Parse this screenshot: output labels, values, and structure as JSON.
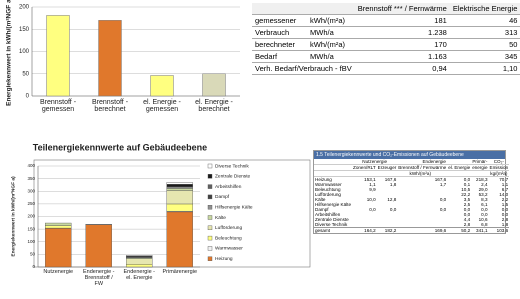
{
  "chart_data": [
    {
      "type": "bar",
      "ylabel": "Energiekennwert in kWh/(m²NGF a)",
      "categories": [
        "Brennstoff - gemessen",
        "Brennstoff - berechnet",
        "el. Energie - gemessen",
        "el. Energie - berechnet"
      ],
      "values": [
        181,
        170,
        46,
        50
      ],
      "colors": [
        "#ffff80",
        "#e0782c",
        "#ffff80",
        "#d9d9b8"
      ],
      "ylim": [
        0,
        200
      ],
      "yticks": [
        0,
        50,
        100,
        150,
        200
      ],
      "grid": true
    },
    {
      "type": "stacked_bar",
      "title": "Teilenergiekennwerte auf Gebäudeebene",
      "ylabel": "Energiekennwert in kWh/(m²NGF a)",
      "categories": [
        "Nutzenergie",
        "Endenergie - Brennstoff / FW",
        "Endenergie - el. Energie",
        "Primärenergie"
      ],
      "series": [
        {
          "name": "Heizung",
          "color": "#e0782c",
          "values": [
            153.1,
            167.6,
            0,
            218.3
          ]
        },
        {
          "name": "Warmwasser",
          "color": "#f2f2f2",
          "values": [
            1.1,
            1.7,
            0.1,
            2.4
          ]
        },
        {
          "name": "Beleuchtung",
          "color": "#ffff80",
          "values": [
            9.9,
            0,
            10.5,
            29.0
          ]
        },
        {
          "name": "Lufförderung",
          "color": "#e6e6b0",
          "values": [
            0,
            0,
            22.2,
            53.2
          ]
        },
        {
          "name": "Kälte",
          "color": "#c8d8a0",
          "values": [
            10.0,
            0,
            3.5,
            8.3
          ]
        },
        {
          "name": "Hilfsenergie Kälte",
          "color": "#909090",
          "values": [
            0,
            0,
            2.5,
            6.1
          ]
        },
        {
          "name": "Dampf",
          "color": "#404040",
          "values": [
            0,
            0,
            0,
            0
          ]
        },
        {
          "name": "Arbeitshilfen",
          "color": "#606060",
          "values": [
            0,
            0,
            0,
            0
          ]
        },
        {
          "name": "Zentrale Dienste",
          "color": "#1a1a1a",
          "values": [
            0,
            0,
            4.4,
            10.6
          ]
        },
        {
          "name": "Diverse Technik",
          "color": "#ffffff",
          "values": [
            0,
            0,
            2.8,
            6.8
          ]
        }
      ],
      "ylim": [
        0,
        400
      ],
      "yticks": [
        0,
        50,
        100,
        150,
        200,
        250,
        300,
        350,
        400
      ],
      "grid": true,
      "legend": "right"
    }
  ],
  "summary_table": {
    "header": [
      "Brennstoff *** / Fernwärme",
      "Elektrische Energie"
    ],
    "rows": [
      [
        "gemessener",
        "kWh/(m²a)",
        "181",
        "46"
      ],
      [
        "Verbrauch",
        "MWh/a",
        "1.238",
        "313"
      ],
      [
        "berechneter",
        "kWh/(m²a)",
        "170",
        "50"
      ],
      [
        "Bedarf",
        "MWh/a",
        "1.163",
        "345"
      ],
      [
        "Verh. Bedarf/Verbrauch - fBV",
        "0,94",
        "1,10"
      ]
    ]
  },
  "detail_table": {
    "title": "1.5 Teilenergiekennwerte und CO₂-Emissionen auf Gebäudeebene",
    "header1": [
      "Nutzenergie",
      "Endenergie",
      "Primär-",
      "CO₂-"
    ],
    "header2": [
      "Zonen/RLT",
      "Erzeuger",
      "Brennstoff / Fernwärme",
      "el. Energie",
      "energie",
      "Emission"
    ],
    "units": [
      "kWh/(m²a)",
      "kg/(m²a)"
    ],
    "rows": [
      [
        "Heizung",
        "153,1",
        "167,6",
        "167,6",
        "0,0",
        "218,3",
        "70,7"
      ],
      [
        "Warmwasser",
        "1,1",
        "1,8",
        "1,7",
        "0,1",
        "2,4",
        "1,1"
      ],
      [
        "Beleuchtung",
        "9,9",
        null,
        null,
        "10,5",
        "29,0",
        "6,7"
      ],
      [
        "Lufförderung",
        null,
        null,
        null,
        "22,2",
        "53,2",
        "14,0"
      ],
      [
        "Kälte",
        "10,0",
        "12,8",
        "0,0",
        "3,5",
        "8,3",
        "2,2"
      ],
      [
        "Hilfsenergie Kälte",
        null,
        null,
        null,
        "2,5",
        "6,1",
        "1,5"
      ],
      [
        "Dampf",
        "0,0",
        "0,0",
        "0,0",
        "0,0",
        "0,0",
        "0,0"
      ],
      [
        "Arbeitshilfen",
        null,
        null,
        null,
        "0,0",
        "0,0",
        "0,0"
      ],
      [
        "Zentrale Dienste",
        null,
        null,
        null,
        "4,4",
        "10,6",
        "2,8"
      ],
      [
        "Diverse Technik",
        null,
        null,
        null,
        "2,8",
        "6,8",
        "1,8"
      ],
      [
        "gesamt",
        "164,2",
        "182,2",
        "169,6",
        "50,2",
        "341,1",
        "103,6"
      ]
    ]
  }
}
